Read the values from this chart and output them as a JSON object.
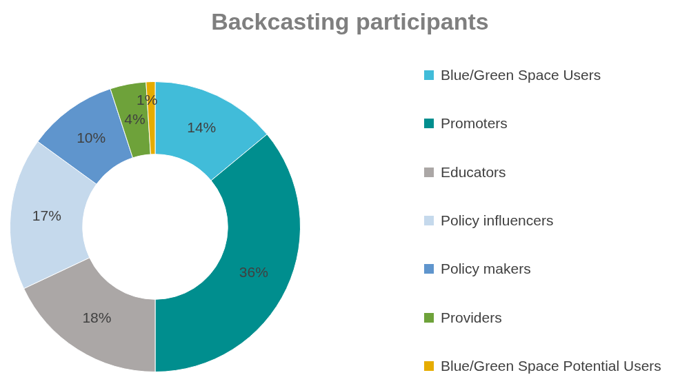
{
  "chart_data": {
    "type": "donut",
    "title": "Backcasting participants",
    "categories": [
      "Blue/Green Space Users",
      "Promoters",
      "Educators",
      "Policy influencers",
      "Policy makers",
      "Providers",
      "Blue/Green Space Potential Users"
    ],
    "values": [
      14,
      36,
      18,
      17,
      10,
      4,
      1
    ],
    "value_labels": [
      "14%",
      "36%",
      "18%",
      "17%",
      "10%",
      "4%",
      "1%"
    ],
    "colors": [
      "#41bcd9",
      "#008e8e",
      "#aba7a6",
      "#c5d9ec",
      "#5f95cd",
      "#6ea23a",
      "#e6ac00"
    ],
    "legend": "right"
  }
}
